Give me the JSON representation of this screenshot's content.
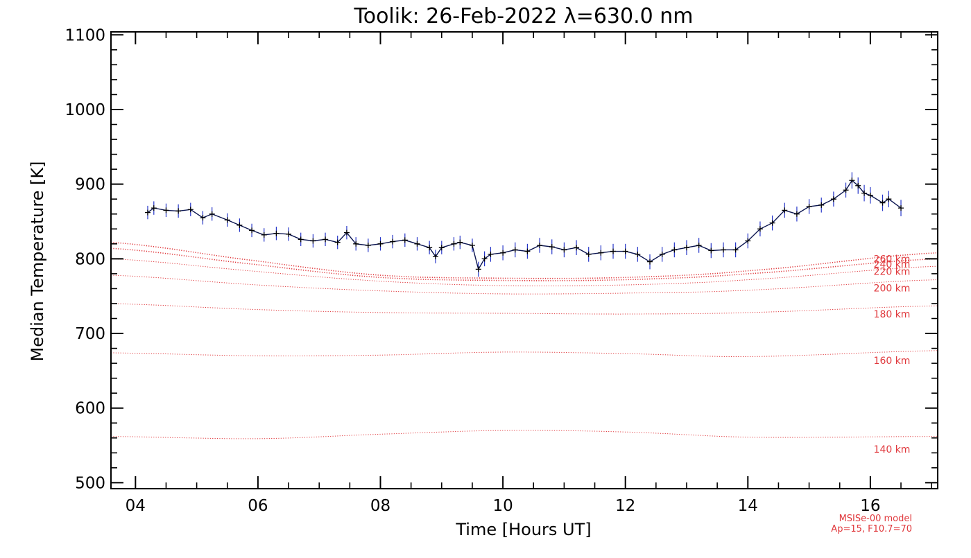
{
  "chart_data": {
    "type": "line",
    "title": "Toolik: 26-Feb-2022 λ=630.0 nm",
    "xlabel": "Time [Hours UT]",
    "ylabel": "Median Temperature [K]",
    "xlim": [
      3.6,
      17.1
    ],
    "ylim": [
      492,
      1104
    ],
    "xticks": [
      {
        "value": 4,
        "label": "04"
      },
      {
        "value": 6,
        "label": "06"
      },
      {
        "value": 8,
        "label": "08"
      },
      {
        "value": 10,
        "label": "10"
      },
      {
        "value": 12,
        "label": "12"
      },
      {
        "value": 14,
        "label": "14"
      },
      {
        "value": 16,
        "label": "16"
      }
    ],
    "yticks": [
      {
        "value": 500,
        "label": "500"
      },
      {
        "value": 600,
        "label": "600"
      },
      {
        "value": 700,
        "label": "700"
      },
      {
        "value": 800,
        "label": "800"
      },
      {
        "value": 900,
        "label": "900"
      },
      {
        "value": 1000,
        "label": "1000"
      },
      {
        "value": 1100,
        "label": "1100"
      }
    ],
    "grid": false,
    "measured": {
      "color": "#0a1450",
      "error_color": "#2535c8",
      "x": [
        4.2,
        4.3,
        4.5,
        4.7,
        4.9,
        5.1,
        5.25,
        5.5,
        5.7,
        5.9,
        6.1,
        6.3,
        6.5,
        6.7,
        6.9,
        7.1,
        7.3,
        7.45,
        7.6,
        7.8,
        8.0,
        8.2,
        8.4,
        8.6,
        8.8,
        8.9,
        9.0,
        9.2,
        9.3,
        9.5,
        9.6,
        9.7,
        9.8,
        10.0,
        10.2,
        10.4,
        10.6,
        10.8,
        11.0,
        11.2,
        11.4,
        11.6,
        11.8,
        12.0,
        12.2,
        12.4,
        12.6,
        12.8,
        13.0,
        13.2,
        13.4,
        13.6,
        13.8,
        14.0,
        14.2,
        14.4,
        14.6,
        14.8,
        15.0,
        15.2,
        15.4,
        15.6,
        15.7,
        15.8,
        15.9,
        16.0,
        16.2,
        16.3,
        16.5
      ],
      "y": [
        862,
        868,
        865,
        864,
        866,
        855,
        860,
        852,
        845,
        838,
        832,
        834,
        833,
        826,
        824,
        826,
        822,
        835,
        820,
        818,
        820,
        823,
        825,
        820,
        815,
        803,
        815,
        820,
        822,
        818,
        786,
        800,
        806,
        808,
        812,
        810,
        818,
        816,
        812,
        815,
        806,
        808,
        810,
        810,
        806,
        796,
        806,
        812,
        815,
        818,
        811,
        812,
        812,
        824,
        840,
        848,
        865,
        860,
        870,
        872,
        880,
        892,
        905,
        898,
        888,
        885,
        875,
        880,
        868
      ],
      "error": [
        9,
        9,
        9,
        9,
        9,
        9,
        9,
        9,
        9,
        9,
        9,
        9,
        9,
        9,
        9,
        9,
        9,
        9,
        9,
        9,
        9,
        9,
        9,
        9,
        9,
        9,
        9,
        9,
        9,
        9,
        10,
        10,
        10,
        10,
        10,
        10,
        10,
        10,
        10,
        10,
        10,
        10,
        10,
        10,
        10,
        10,
        10,
        10,
        10,
        10,
        10,
        10,
        10,
        10,
        10,
        10,
        10,
        10,
        10,
        10,
        10,
        10,
        11,
        11,
        11,
        11,
        11,
        11,
        11
      ]
    },
    "model_series": [
      {
        "name": "140 km",
        "x": [
          3.6,
          6.0,
          8.0,
          10.0,
          12.0,
          14.0,
          17.1
        ],
        "y": [
          562,
          559,
          565,
          570,
          568,
          561,
          562
        ]
      },
      {
        "name": "160 km",
        "x": [
          3.6,
          6.0,
          8.0,
          10.0,
          12.0,
          14.0,
          17.1
        ],
        "y": [
          674,
          670,
          671,
          675,
          673,
          669,
          677
        ]
      },
      {
        "name": "180 km",
        "x": [
          3.6,
          6.0,
          8.0,
          10.0,
          12.0,
          14.0,
          17.1
        ],
        "y": [
          740,
          732,
          728,
          727,
          726,
          728,
          737
        ]
      },
      {
        "name": "200 km",
        "x": [
          3.6,
          6.0,
          8.0,
          10.0,
          12.0,
          14.0,
          17.1
        ],
        "y": [
          778,
          765,
          757,
          753,
          754,
          758,
          772
        ]
      },
      {
        "name": "220 km",
        "x": [
          3.6,
          6.0,
          8.0,
          10.0,
          12.0,
          14.0,
          17.1
        ],
        "y": [
          800,
          783,
          770,
          764,
          765,
          772,
          790
        ]
      },
      {
        "name": "240 km",
        "x": [
          3.6,
          6.0,
          8.0,
          10.0,
          12.0,
          14.0,
          17.1
        ],
        "y": [
          814,
          792,
          775,
          771,
          772,
          780,
          800
        ]
      },
      {
        "name": "260 km",
        "x": [
          3.6,
          6.0,
          8.0,
          10.0,
          12.0,
          14.0,
          17.1
        ],
        "y": [
          822,
          797,
          778,
          774,
          775,
          784,
          808
        ]
      }
    ],
    "model_labels": [
      {
        "text": "260 km",
        "value": 800
      },
      {
        "text": "240 km",
        "value": 793
      },
      {
        "text": "220 km",
        "value": 783
      },
      {
        "text": "200 km",
        "value": 761
      },
      {
        "text": "180 km",
        "value": 726
      },
      {
        "text": "160 km",
        "value": 664
      },
      {
        "text": "140 km",
        "value": 545
      }
    ],
    "model_color": "#e0383c",
    "notes": [
      "MSISe-00 model",
      "Ap=15, F10.7=70"
    ]
  }
}
